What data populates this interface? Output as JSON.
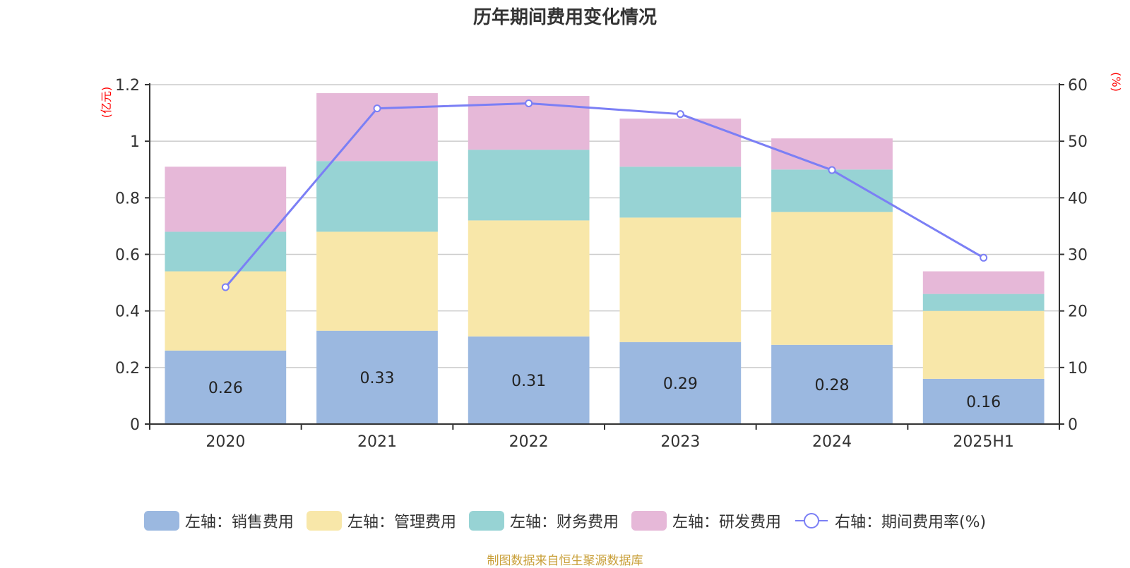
{
  "chart_data": {
    "type": "bar",
    "stacked": true,
    "title": "历年期间费用变化情况",
    "categories": [
      "2020",
      "2021",
      "2022",
      "2023",
      "2024",
      "2025H1"
    ],
    "series": [
      {
        "name": "左轴：销售费用",
        "axis": "left",
        "type": "bar",
        "color": "#9bb8e0",
        "values": [
          0.26,
          0.33,
          0.31,
          0.29,
          0.28,
          0.16
        ],
        "show_labels": true
      },
      {
        "name": "左轴：管理费用",
        "axis": "left",
        "type": "bar",
        "color": "#f8e7a9",
        "values": [
          0.28,
          0.35,
          0.41,
          0.44,
          0.47,
          0.24
        ]
      },
      {
        "name": "左轴：财务费用",
        "axis": "left",
        "type": "bar",
        "color": "#97d3d4",
        "values": [
          0.14,
          0.25,
          0.25,
          0.18,
          0.15,
          0.06
        ]
      },
      {
        "name": "左轴：研发费用",
        "axis": "left",
        "type": "bar",
        "color": "#e6b8d8",
        "values": [
          0.23,
          0.24,
          0.19,
          0.17,
          0.11,
          0.08
        ]
      },
      {
        "name": "右轴：期间费用率(%)",
        "axis": "right",
        "type": "line",
        "color": "#7b7ff5",
        "values": [
          24.2,
          55.8,
          56.7,
          54.8,
          44.9,
          29.4
        ]
      }
    ],
    "y_left": {
      "label": "(亿元)",
      "min": 0,
      "max": 1.2,
      "ticks": [
        "0",
        "0.2",
        "0.4",
        "0.6",
        "0.8",
        "1",
        "1.2"
      ],
      "tick_values": [
        0,
        0.2,
        0.4,
        0.6,
        0.8,
        1.0,
        1.2
      ]
    },
    "y_right": {
      "label": "(%)",
      "min": 0,
      "max": 60,
      "ticks": [
        "0",
        "10",
        "20",
        "30",
        "40",
        "50",
        "60"
      ],
      "tick_values": [
        0,
        10,
        20,
        30,
        40,
        50,
        60
      ]
    },
    "grid": true,
    "legend_position": "bottom",
    "axis_label_color": "#ff0000"
  },
  "source_note": "制图数据来自恒生聚源数据库"
}
